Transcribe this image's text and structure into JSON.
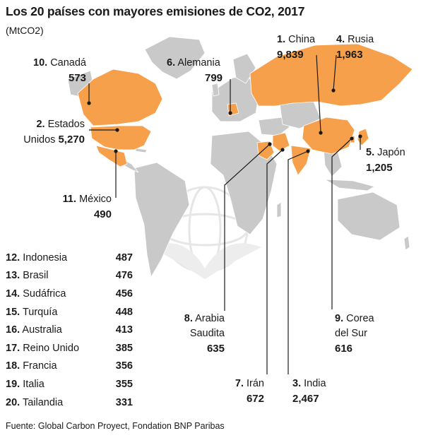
{
  "title": "Los 20 países con mayores emisiones de CO2, 2017",
  "unit": "(MtCO2)",
  "source": "Fuente: Global Carbon Proyect, Fondation BNP Paribas",
  "colors": {
    "highlight": "#f7a04b",
    "land": "#c9c9c9",
    "line": "#1a1a1a",
    "emblem": "#e9e9e9"
  },
  "map_labels": [
    {
      "id": "china",
      "rank": "1.",
      "name": "China",
      "value": "9,839"
    },
    {
      "id": "rusia",
      "rank": "4.",
      "name": "Rusia",
      "value": "1,963"
    },
    {
      "id": "canada",
      "rank": "10.",
      "name": "Canadá",
      "value": "573"
    },
    {
      "id": "alemania",
      "rank": "6.",
      "name": "Alemania",
      "value": "799"
    },
    {
      "id": "eeuu",
      "rank": "2.",
      "name": "Estados",
      "name2": "Unidos",
      "value": "5,270"
    },
    {
      "id": "japon",
      "rank": "5.",
      "name": "Japón",
      "value": "1,205"
    },
    {
      "id": "mexico",
      "rank": "11.",
      "name": "México",
      "value": "490"
    },
    {
      "id": "arabia",
      "rank": "8.",
      "name": "Arabia",
      "name2": "Saudita",
      "value": "635"
    },
    {
      "id": "corea",
      "rank": "9.",
      "name": "Corea",
      "name2": "del Sur",
      "value": "616"
    },
    {
      "id": "iran",
      "rank": "7.",
      "name": "Irán",
      "value": "672"
    },
    {
      "id": "india",
      "rank": "3.",
      "name": "India",
      "value": "2,467"
    }
  ],
  "table": [
    {
      "rank": "12.",
      "name": "Indonesia",
      "value": "487"
    },
    {
      "rank": "13.",
      "name": "Brasil",
      "value": "476"
    },
    {
      "rank": "14.",
      "name": "Sudáfrica",
      "value": "456"
    },
    {
      "rank": "15.",
      "name": "Turquía",
      "value": "448"
    },
    {
      "rank": "16.",
      "name": "Australia",
      "value": "413"
    },
    {
      "rank": "17.",
      "name": "Reino Unido",
      "value": "385"
    },
    {
      "rank": "18.",
      "name": "Francia",
      "value": "356"
    },
    {
      "rank": "19.",
      "name": "Italia",
      "value": "355"
    },
    {
      "rank": "20.",
      "name": "Tailandia",
      "value": "331"
    }
  ]
}
